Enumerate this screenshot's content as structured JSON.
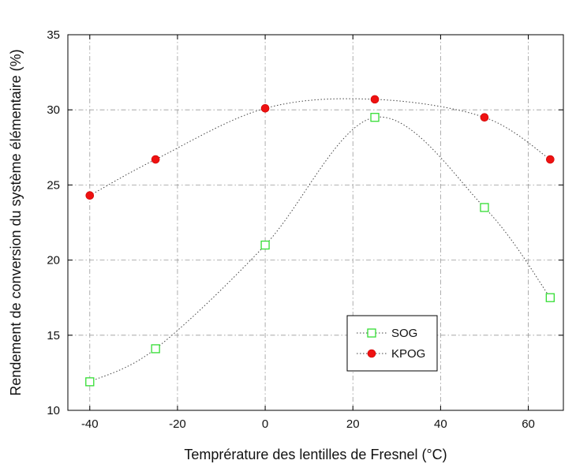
{
  "chart_data": {
    "type": "scatter",
    "xlabel": "Temprérature des lentilles de Fresnel (°C)",
    "ylabel": "Rendement de conversion du système élémentaire (%)",
    "xlim": [
      -45,
      68
    ],
    "ylim": [
      10,
      35
    ],
    "xticks": [
      -40,
      -20,
      0,
      20,
      40,
      60
    ],
    "yticks": [
      10,
      15,
      20,
      25,
      30,
      35
    ],
    "grid": true,
    "legend_position": "lower-right",
    "series": [
      {
        "name": "SOG",
        "marker": "open-square",
        "color": "#33dd33",
        "x": [
          -40,
          -25,
          0,
          25,
          50,
          65
        ],
        "y": [
          11.9,
          14.1,
          21.0,
          29.5,
          23.5,
          17.5
        ]
      },
      {
        "name": "KPOG",
        "marker": "filled-circle",
        "color": "#ee1111",
        "x": [
          -40,
          -25,
          0,
          25,
          50,
          65
        ],
        "y": [
          24.3,
          26.7,
          30.1,
          30.7,
          29.5,
          26.7
        ]
      }
    ]
  }
}
